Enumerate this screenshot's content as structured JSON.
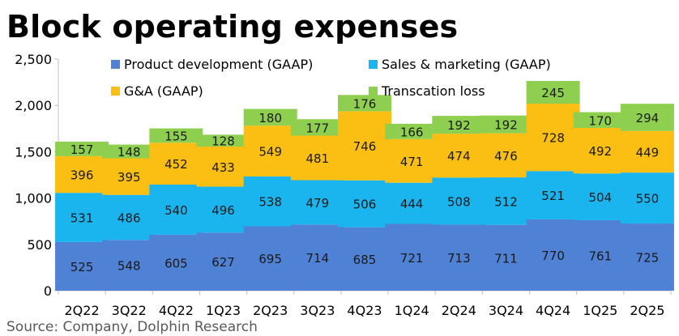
{
  "chart_data": {
    "type": "bar",
    "stacked": true,
    "title": "Block operating expenses",
    "source": "Source: Company, Dolphin Research",
    "categories": [
      "2Q22",
      "3Q22",
      "4Q22",
      "1Q23",
      "2Q23",
      "3Q23",
      "4Q23",
      "1Q24",
      "2Q24",
      "3Q24",
      "4Q24",
      "1Q25",
      "2Q25"
    ],
    "ylim": [
      0,
      2500
    ],
    "yticks": [
      0,
      500,
      1000,
      1500,
      2000,
      2500
    ],
    "ytick_labels": [
      "0",
      "500",
      "1,000",
      "1,500",
      "2,000",
      "2,500"
    ],
    "legend_position": "top-left",
    "series": [
      {
        "name": "Product development (GAAP)",
        "color": "#4f81d4",
        "values": [
          525,
          548,
          605,
          627,
          695,
          714,
          685,
          721,
          713,
          711,
          770,
          761,
          725
        ]
      },
      {
        "name": "Sales & marketing (GAAP)",
        "color": "#1ab4ef",
        "values": [
          531,
          486,
          540,
          496,
          538,
          479,
          506,
          444,
          508,
          512,
          521,
          504,
          550
        ]
      },
      {
        "name": "G&A (GAAP)",
        "color": "#fbbf14",
        "values": [
          396,
          395,
          452,
          433,
          549,
          481,
          746,
          471,
          474,
          476,
          728,
          492,
          449
        ]
      },
      {
        "name": "Transcation loss",
        "color": "#8fcf4f",
        "values": [
          157,
          148,
          155,
          128,
          180,
          177,
          176,
          166,
          192,
          192,
          245,
          170,
          294
        ]
      }
    ]
  }
}
